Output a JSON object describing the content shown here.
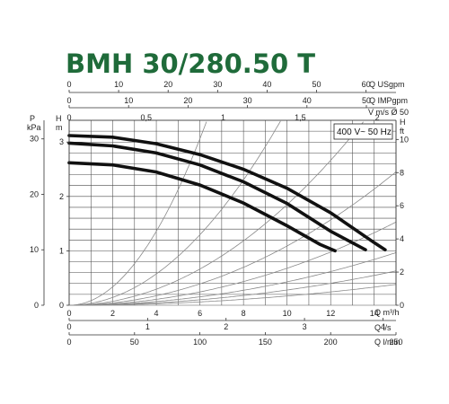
{
  "chart_data": {
    "type": "line",
    "title": "BMH 30/280.50 T",
    "supply_label": "400 V~ 50 Hz",
    "x_main": {
      "label": "Q m³/h",
      "range": [
        0,
        15
      ],
      "ticks": [
        "0",
        "2",
        "4",
        "6",
        "8",
        "10",
        "12",
        "14"
      ]
    },
    "x_lps": {
      "label": "Q l/s",
      "ticks": [
        "0",
        "1",
        "2",
        "3",
        "4"
      ]
    },
    "x_lmin": {
      "label": "Q l/min",
      "ticks": [
        "0",
        "50",
        "100",
        "150",
        "200",
        "250"
      ]
    },
    "x_usgpm": {
      "label": "Q USgpm",
      "ticks": [
        "0",
        "10",
        "20",
        "30",
        "40",
        "50",
        "60"
      ]
    },
    "x_impgpm": {
      "label": "Q IMPgpm",
      "ticks": [
        "0",
        "10",
        "20",
        "30",
        "40",
        "50"
      ]
    },
    "x_vel": {
      "label": "V m/s Ø 50",
      "ticks": [
        "0",
        "0,5",
        "1",
        "1,5",
        "2"
      ]
    },
    "y_kpa": {
      "label_p": "P",
      "label_unit": "kPa",
      "ticks": [
        "0",
        "10",
        "20",
        "30"
      ]
    },
    "y_m": {
      "label_h": "H",
      "label_unit": "m",
      "range": [
        0,
        3.4
      ],
      "ticks": [
        "0",
        "1",
        "2",
        "3"
      ]
    },
    "y_ft": {
      "label_h": "H",
      "label_unit": "ft",
      "ticks": [
        "0",
        "2",
        "4",
        "6",
        "8",
        "10"
      ]
    },
    "series": [
      {
        "x": [
          0,
          2,
          4,
          6,
          8,
          10,
          12,
          14,
          14.5
        ],
        "y": [
          3.12,
          3.09,
          2.97,
          2.77,
          2.5,
          2.15,
          1.7,
          1.15,
          1.02
        ]
      },
      {
        "x": [
          0,
          2,
          4,
          6,
          8,
          10,
          12,
          13.6
        ],
        "y": [
          2.98,
          2.93,
          2.8,
          2.58,
          2.27,
          1.87,
          1.36,
          1.02
        ]
      },
      {
        "x": [
          0,
          2,
          4,
          6,
          8,
          10,
          11.5,
          12.2
        ],
        "y": [
          2.62,
          2.58,
          2.45,
          2.21,
          1.88,
          1.46,
          1.12,
          1.0
        ]
      }
    ]
  }
}
